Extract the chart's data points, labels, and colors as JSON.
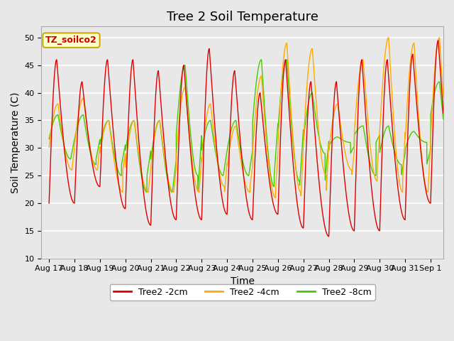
{
  "title": "Tree 2 Soil Temperature",
  "xlabel": "Time",
  "ylabel": "Soil Temperature (C)",
  "ylim": [
    10,
    52
  ],
  "yticks": [
    10,
    15,
    20,
    25,
    30,
    35,
    40,
    45,
    50
  ],
  "date_labels": [
    "Aug 17",
    "Aug 18",
    "Aug 19",
    "Aug 20",
    "Aug 21",
    "Aug 22",
    "Aug 23",
    "Aug 24",
    "Aug 25",
    "Aug 26",
    "Aug 27",
    "Aug 28",
    "Aug 29",
    "Aug 30",
    "Aug 31",
    "Sep 1"
  ],
  "date_positions": [
    0,
    1,
    2,
    3,
    4,
    5,
    6,
    7,
    8,
    9,
    10,
    11,
    12,
    13,
    14,
    15
  ],
  "legend_label": "TZ_soilco2",
  "series": [
    {
      "label": "Tree2 -2cm",
      "color": "#dd0000"
    },
    {
      "label": "Tree2 -4cm",
      "color": "#ffaa00"
    },
    {
      "label": "Tree2 -8cm",
      "color": "#44cc00"
    }
  ],
  "background_color": "#e8e8e8",
  "grid_color": "#ffffff",
  "title_fontsize": 13,
  "axis_fontsize": 10,
  "tick_fontsize": 8,
  "legend_box_color": "#ffffcc",
  "legend_box_edge": "#ccaa00",
  "fig_facecolor": "#e8e8e8"
}
